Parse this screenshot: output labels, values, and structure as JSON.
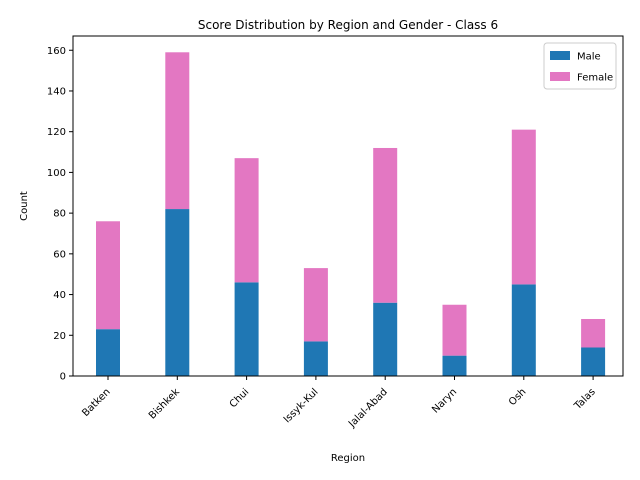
{
  "chart_data": {
    "type": "bar",
    "stacked": true,
    "title": "Score Distribution by Region and Gender - Class 6",
    "xlabel": "Region",
    "ylabel": "Count",
    "categories": [
      "Batken",
      "Bishkek",
      "Chui",
      "Issyk-Kul",
      "Jalal-Abad",
      "Naryn",
      "Osh",
      "Talas"
    ],
    "series": [
      {
        "name": "Male",
        "color": "#1f77b4",
        "values": [
          23,
          82,
          46,
          17,
          36,
          10,
          45,
          14
        ]
      },
      {
        "name": "Female",
        "color": "#e377c2",
        "values": [
          53,
          77,
          61,
          36,
          76,
          25,
          76,
          14
        ]
      }
    ],
    "ylim": [
      0,
      167
    ],
    "yticks": [
      0,
      20,
      40,
      60,
      80,
      100,
      120,
      140,
      160
    ],
    "legend": "top-right",
    "grid": false
  }
}
